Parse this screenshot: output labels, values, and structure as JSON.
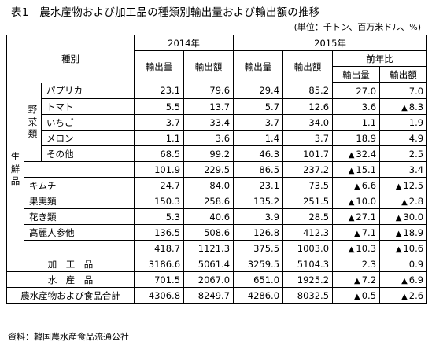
{
  "title": "表1　農水産物および加工品の種類別輸出量および輸出額の推移",
  "unit_note": "(単位：千トン、百万米ドル、%)",
  "source": "資料：韓国農水産食品流通公社",
  "headers": {
    "category": "種別",
    "y2014": "2014年",
    "y2015": "2015年",
    "yoy": "前年比",
    "export_volume": "輸出量",
    "export_value": "輸出額"
  },
  "labels": {
    "fresh": "生鮮品",
    "vegetables": "野菜類",
    "processed": "加　工　品",
    "marine": "水　産　品",
    "grand_total": "農水産物および食品合計"
  },
  "triangle": "▲",
  "vegetables": [
    {
      "name": "パプリカ",
      "v14": "23.1",
      "a14": "79.6",
      "v15": "29.4",
      "a15": "85.2",
      "yv": "27.0",
      "yv_neg": false,
      "ya": "7.0",
      "ya_neg": false
    },
    {
      "name": "トマト",
      "v14": "5.5",
      "a14": "13.7",
      "v15": "5.7",
      "a15": "12.6",
      "yv": "3.6",
      "yv_neg": false,
      "ya": "8.3",
      "ya_neg": true
    },
    {
      "name": "いちご",
      "v14": "3.7",
      "a14": "33.4",
      "v15": "3.7",
      "a15": "34.0",
      "yv": "1.1",
      "yv_neg": false,
      "ya": "1.9",
      "ya_neg": false
    },
    {
      "name": "メロン",
      "v14": "1.1",
      "a14": "3.6",
      "v15": "1.4",
      "a15": "3.7",
      "yv": "18.9",
      "yv_neg": false,
      "ya": "4.9",
      "ya_neg": false
    },
    {
      "name": "その他",
      "v14": "68.5",
      "a14": "99.2",
      "v15": "46.3",
      "a15": "101.7",
      "yv": "32.4",
      "yv_neg": true,
      "ya": "2.5",
      "ya_neg": false
    }
  ],
  "veg_subtotal": {
    "v14": "101.9",
    "a14": "229.5",
    "v15": "86.5",
    "a15": "237.2",
    "yv": "15.1",
    "yv_neg": true,
    "ya": "3.4",
    "ya_neg": false
  },
  "others": [
    {
      "name": "キムチ",
      "v14": "24.7",
      "a14": "84.0",
      "v15": "23.1",
      "a15": "73.5",
      "yv": "6.6",
      "yv_neg": true,
      "ya": "12.5",
      "ya_neg": true
    },
    {
      "name": "果実類",
      "v14": "150.3",
      "a14": "258.6",
      "v15": "135.2",
      "a15": "251.5",
      "yv": "10.0",
      "yv_neg": true,
      "ya": "2.8",
      "ya_neg": true
    },
    {
      "name": "花き類",
      "v14": "5.3",
      "a14": "40.6",
      "v15": "3.9",
      "a15": "28.5",
      "yv": "27.1",
      "yv_neg": true,
      "ya": "30.0",
      "ya_neg": true
    },
    {
      "name": "高麗人参他",
      "v14": "136.5",
      "a14": "508.6",
      "v15": "126.8",
      "a15": "412.3",
      "yv": "7.1",
      "yv_neg": true,
      "ya": "18.9",
      "ya_neg": true
    }
  ],
  "fresh_subtotal": {
    "v14": "418.7",
    "a14": "1121.3",
    "v15": "375.5",
    "a15": "1003.0",
    "yv": "10.3",
    "yv_neg": true,
    "ya": "10.6",
    "ya_neg": true
  },
  "processed": {
    "v14": "3186.6",
    "a14": "5061.4",
    "v15": "3259.5",
    "a15": "5104.3",
    "yv": "2.3",
    "yv_neg": false,
    "ya": "0.9",
    "ya_neg": false
  },
  "marine": {
    "v14": "701.5",
    "a14": "2067.0",
    "v15": "651.0",
    "a15": "1925.2",
    "yv": "7.2",
    "yv_neg": true,
    "ya": "6.9",
    "ya_neg": true
  },
  "grand_total": {
    "v14": "4306.8",
    "a14": "8249.7",
    "v15": "4286.0",
    "a15": "8032.5",
    "yv": "0.5",
    "yv_neg": true,
    "ya": "2.6",
    "ya_neg": true
  }
}
